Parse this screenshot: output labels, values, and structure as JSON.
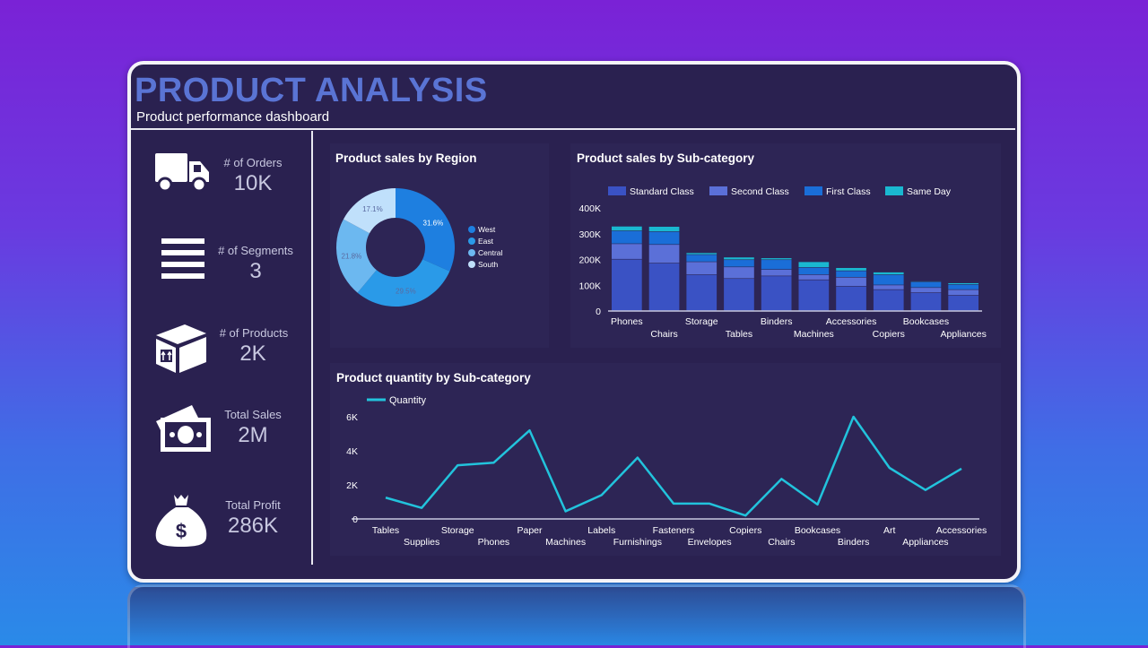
{
  "header": {
    "title": "PRODUCT ANALYSIS",
    "subtitle": "Product performance dashboard"
  },
  "kpis": [
    {
      "label": "# of Orders",
      "value": "10K",
      "icon": "truck-icon"
    },
    {
      "label": "# of Segments",
      "value": "3",
      "icon": "list-icon"
    },
    {
      "label": "# of Products",
      "value": "2K",
      "icon": "box-icon"
    },
    {
      "label": "Total Sales",
      "value": "2M",
      "icon": "money-bills-icon"
    },
    {
      "label": "Total Profit",
      "value": "286K",
      "icon": "money-bag-icon"
    }
  ],
  "colors": {
    "background_top": "#7a22d6",
    "background_bottom": "#2a8ae8",
    "card": "#2a2150",
    "title": "#5a74d4",
    "line": "#22c3dc"
  },
  "chart_data": [
    {
      "type": "pie",
      "title": "Product sales by Region",
      "donut": true,
      "categories": [
        "West",
        "East",
        "Central",
        "South"
      ],
      "values": [
        31.6,
        29.5,
        21.8,
        17.1
      ],
      "labels": [
        "31.6%",
        "29.5%",
        "21.8%",
        "17.1%"
      ],
      "colors": [
        "#1e7fe0",
        "#2a9ae8",
        "#6cb8f0",
        "#c0e0fb"
      ],
      "legend": "right"
    },
    {
      "type": "bar",
      "stacked": true,
      "title": "Product sales by Sub-category",
      "categories": [
        "Phones",
        "Chairs",
        "Storage",
        "Tables",
        "Binders",
        "Machines",
        "Accessories",
        "Copiers",
        "Bookcases",
        "Appliances"
      ],
      "series": [
        {
          "name": "Standard Class",
          "color": "#3a52c4",
          "values": [
            200,
            185,
            140,
            125,
            135,
            120,
            95,
            82,
            70,
            60
          ]
        },
        {
          "name": "Second Class",
          "color": "#5b70d8",
          "values": [
            60,
            72,
            50,
            45,
            25,
            20,
            35,
            18,
            20,
            22
          ]
        },
        {
          "name": "First Class",
          "color": "#1a6ed8",
          "values": [
            50,
            50,
            28,
            28,
            38,
            28,
            25,
            40,
            22,
            20
          ]
        },
        {
          "name": "Same Day",
          "color": "#1ab8d0",
          "values": [
            18,
            20,
            7,
            10,
            7,
            22,
            12,
            10,
            3,
            6
          ]
        }
      ],
      "unit": "K",
      "yticks": [
        "0",
        "100K",
        "200K",
        "300K",
        "400K"
      ],
      "ylim": [
        0,
        400
      ],
      "legend": "top"
    },
    {
      "type": "line",
      "title": "Product quantity by Sub-category",
      "categories": [
        "Tables",
        "Supplies",
        "Storage",
        "Phones",
        "Paper",
        "Machines",
        "Labels",
        "Furnishings",
        "Fasteners",
        "Envelopes",
        "Copiers",
        "Chairs",
        "Bookcases",
        "Binders",
        "Art",
        "Appliances",
        "Accessories"
      ],
      "series": [
        {
          "name": "Quantity",
          "color": "#22c3dc",
          "values": [
            1.25,
            0.65,
            3.15,
            3.3,
            5.2,
            0.45,
            1.4,
            3.6,
            0.9,
            0.9,
            0.2,
            2.35,
            0.85,
            6.0,
            3.0,
            1.7,
            2.95
          ]
        }
      ],
      "unit": "K",
      "yticks": [
        "0",
        "2K",
        "4K",
        "6K"
      ],
      "ylim": [
        0,
        6
      ],
      "legend": "top-left"
    }
  ]
}
